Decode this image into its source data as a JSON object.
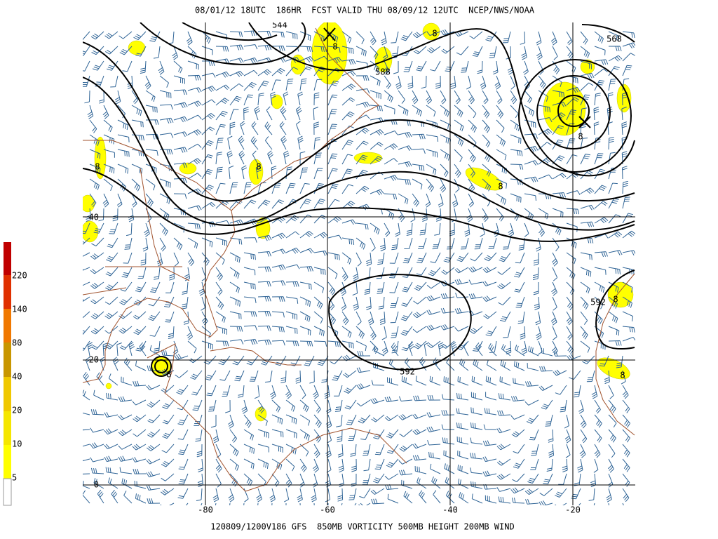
{
  "header": {
    "title": "08/01/12 18UTC  186HR  FCST VALID THU 08/09/12 12UTC  NCEP/NWS/NOAA"
  },
  "footer": {
    "caption": "120809/1200V186 GFS  850MB VORTICITY 500MB HEIGHT 200MB WIND"
  },
  "colorbar": {
    "labels": [
      220,
      140,
      80,
      40,
      20,
      10,
      5
    ]
  },
  "grid": {
    "latitudes": [
      40,
      20,
      0
    ],
    "longitudes": [
      -80,
      -60,
      -40,
      -20
    ]
  },
  "contour_labels": [
    544,
    588,
    568,
    592,
    592
  ],
  "vorticity_labels": [
    8,
    8,
    8,
    8,
    8,
    8,
    8,
    8,
    8
  ]
}
